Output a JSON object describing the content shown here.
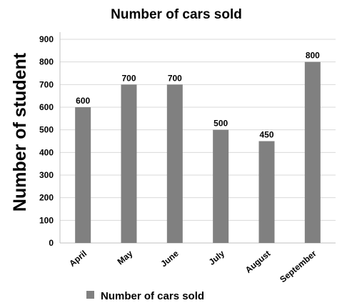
{
  "chart_data": {
    "type": "bar",
    "title": "Number of cars sold",
    "xlabel": "",
    "ylabel": "Number of student",
    "categories": [
      "April",
      "May",
      "June",
      "July",
      "August",
      "September"
    ],
    "series": [
      {
        "name": "Number of cars sold",
        "values": [
          600,
          700,
          700,
          500,
          450,
          800
        ]
      }
    ],
    "data_labels": [
      "600",
      "700",
      "700",
      "500",
      "450",
      "800"
    ],
    "y_ticks": [
      0,
      100,
      200,
      300,
      400,
      500,
      600,
      700,
      800,
      900
    ],
    "ylim": [
      0,
      900
    ],
    "grid": true,
    "legend_position": "bottom",
    "bar_color": "#808080"
  }
}
